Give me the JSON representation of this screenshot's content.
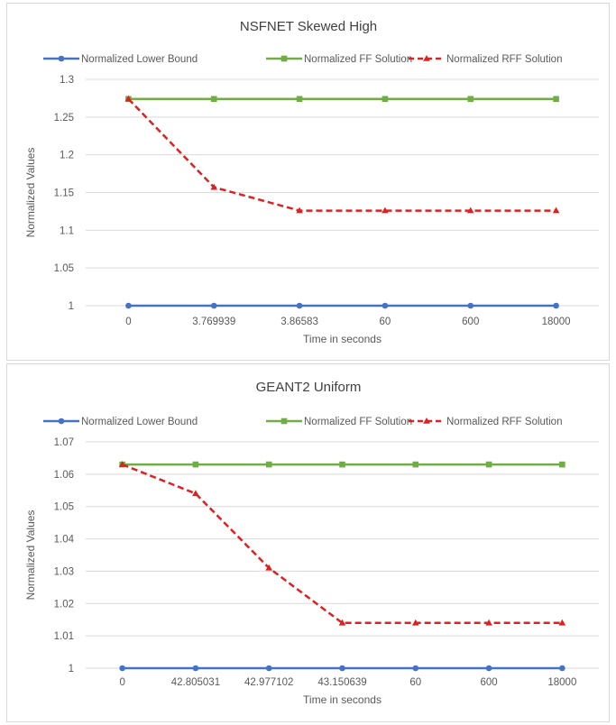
{
  "chart_data": [
    {
      "type": "line",
      "title": "NSFNET Skewed High",
      "xlabel": "Time in seconds",
      "ylabel": "Normalized Values",
      "categories": [
        "0",
        "3.769939",
        "3.86583",
        "60",
        "600",
        "18000"
      ],
      "ylim": [
        1,
        1.3
      ],
      "yticks": [
        "1",
        "1.05",
        "1.1",
        "1.15",
        "1.2",
        "1.25",
        "1.3"
      ],
      "grid": true,
      "legend": "top",
      "series": [
        {
          "name": "Normalized Lower Bound",
          "values": [
            1,
            1,
            1,
            1,
            1,
            1
          ],
          "color": "#4472c4",
          "marker": "circle",
          "dash": false
        },
        {
          "name": "Normalized FF Solution",
          "values": [
            1.274,
            1.274,
            1.274,
            1.274,
            1.274,
            1.274
          ],
          "color": "#70ad47",
          "marker": "square",
          "dash": false
        },
        {
          "name": "Normalized RFF Solution",
          "values": [
            1.274,
            1.157,
            1.126,
            1.126,
            1.126,
            1.126
          ],
          "color": "#e02020",
          "marker": "triangle",
          "dash": true
        }
      ]
    },
    {
      "type": "line",
      "title": "GEANT2 Uniform",
      "xlabel": "Time in seconds",
      "ylabel": "Normalized Values",
      "categories": [
        "0",
        "42.805031",
        "42.977102",
        "43.150639",
        "60",
        "600",
        "18000"
      ],
      "ylim": [
        1,
        1.07
      ],
      "yticks": [
        "1",
        "1.01",
        "1.02",
        "1.03",
        "1.04",
        "1.05",
        "1.06",
        "1.07"
      ],
      "grid": true,
      "legend": "top",
      "series": [
        {
          "name": "Normalized Lower Bound",
          "values": [
            1,
            1,
            1,
            1,
            1,
            1,
            1
          ],
          "color": "#4472c4",
          "marker": "circle",
          "dash": false
        },
        {
          "name": "Normalized FF Solution",
          "values": [
            1.063,
            1.063,
            1.063,
            1.063,
            1.063,
            1.063,
            1.063
          ],
          "color": "#70ad47",
          "marker": "square",
          "dash": false
        },
        {
          "name": "Normalized RFF Solution",
          "values": [
            1.063,
            1.054,
            1.031,
            1.014,
            1.014,
            1.014,
            1.014
          ],
          "color": "#e02020",
          "marker": "triangle",
          "dash": true
        }
      ]
    }
  ]
}
